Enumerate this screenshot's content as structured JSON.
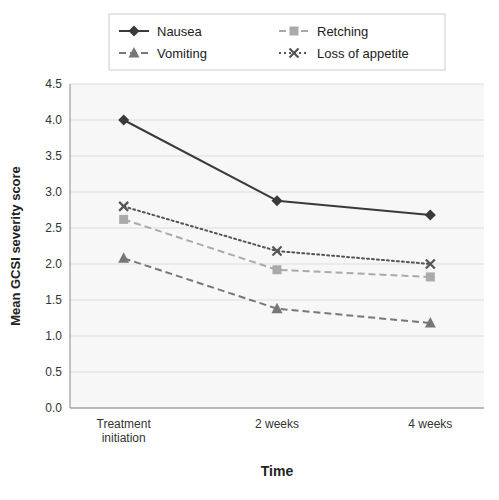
{
  "chart_data": {
    "type": "line",
    "categories": [
      "Treatment\ninitiation",
      "2 weeks",
      "4 weeks"
    ],
    "series": [
      {
        "name": "Nausea",
        "color": "#3a3a3a",
        "marker": "diamond",
        "line_style": "solid",
        "values": [
          4.0,
          2.88,
          2.68
        ]
      },
      {
        "name": "Retching",
        "color": "#aaaaaa",
        "marker": "square",
        "line_style": "dashed",
        "values": [
          2.62,
          1.92,
          1.82
        ]
      },
      {
        "name": "Vomiting",
        "color": "#777777",
        "marker": "triangle",
        "line_style": "dashed",
        "values": [
          2.08,
          1.38,
          1.18
        ]
      },
      {
        "name": "Loss of appetite",
        "color": "#555555",
        "marker": "x",
        "line_style": "dotted",
        "values": [
          2.8,
          2.18,
          2.0
        ]
      }
    ],
    "x_label": "Time",
    "y_label": "Mean GCSI severity score",
    "ylim": [
      0,
      4.5
    ],
    "yticks": [
      {
        "value": 0,
        "label": "0.0"
      },
      0.5,
      {
        "value": 1.0,
        "label": "1.0"
      },
      1.5,
      {
        "value": 2.0,
        "label": "2.0"
      },
      2.5,
      {
        "value": 3.0,
        "label": "3.0"
      },
      3.5,
      {
        "value": 4.0,
        "label": "4.0"
      },
      4.5
    ],
    "grid": true,
    "legend": "top"
  }
}
